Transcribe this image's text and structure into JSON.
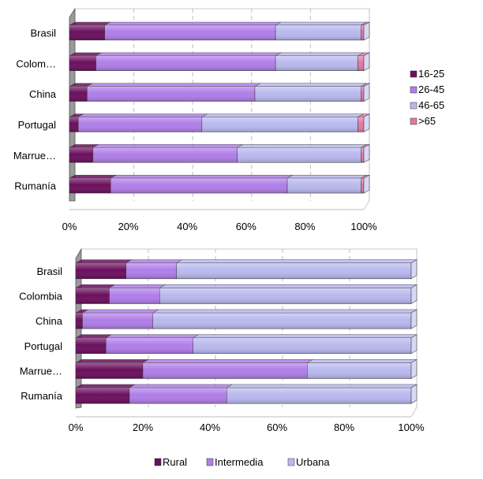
{
  "colors": {
    "c1": "#6b0f5e",
    "c2": "#b07ee8",
    "c3": "#b9b9ef",
    "c4": "#e07aa4",
    "grid": "#c8c8c8",
    "wall": "#9a9a9a"
  },
  "chart_data": [
    {
      "type": "bar",
      "orientation": "horizontal",
      "stacked": "percent",
      "categories": [
        "Brasil",
        "Colom…",
        "China",
        "Portugal",
        "Marrue…",
        "Rumanía"
      ],
      "series": [
        {
          "name": "16-25",
          "values": [
            12,
            9,
            6,
            3,
            8,
            14
          ]
        },
        {
          "name": "26-45",
          "values": [
            58,
            61,
            57,
            42,
            49,
            60
          ]
        },
        {
          "name": "46-65",
          "values": [
            29,
            28,
            36,
            53,
            42,
            25
          ]
        },
        {
          "name": ">65",
          "values": [
            1,
            2,
            1,
            2,
            1,
            1
          ]
        }
      ],
      "xticks": [
        "0%",
        "20%",
        "40%",
        "60%",
        "80%",
        "100%"
      ],
      "xlim": [
        0,
        100
      ],
      "grid": true,
      "legend_position": "right"
    },
    {
      "type": "bar",
      "orientation": "horizontal",
      "stacked": "percent",
      "categories": [
        "Brasil",
        "Colombia",
        "China",
        "Portugal",
        "Marrue…",
        "Rumanía"
      ],
      "series": [
        {
          "name": "Rural",
          "values": [
            15,
            10,
            2,
            9,
            20,
            16
          ]
        },
        {
          "name": "Intermedia",
          "values": [
            15,
            15,
            21,
            26,
            49,
            29
          ]
        },
        {
          "name": "Urbana",
          "values": [
            70,
            75,
            77,
            65,
            31,
            55
          ]
        }
      ],
      "xticks": [
        "0%",
        "20%",
        "40%",
        "60%",
        "80%",
        "100%"
      ],
      "xlim": [
        0,
        100
      ],
      "grid": true,
      "legend_position": "bottom"
    }
  ]
}
